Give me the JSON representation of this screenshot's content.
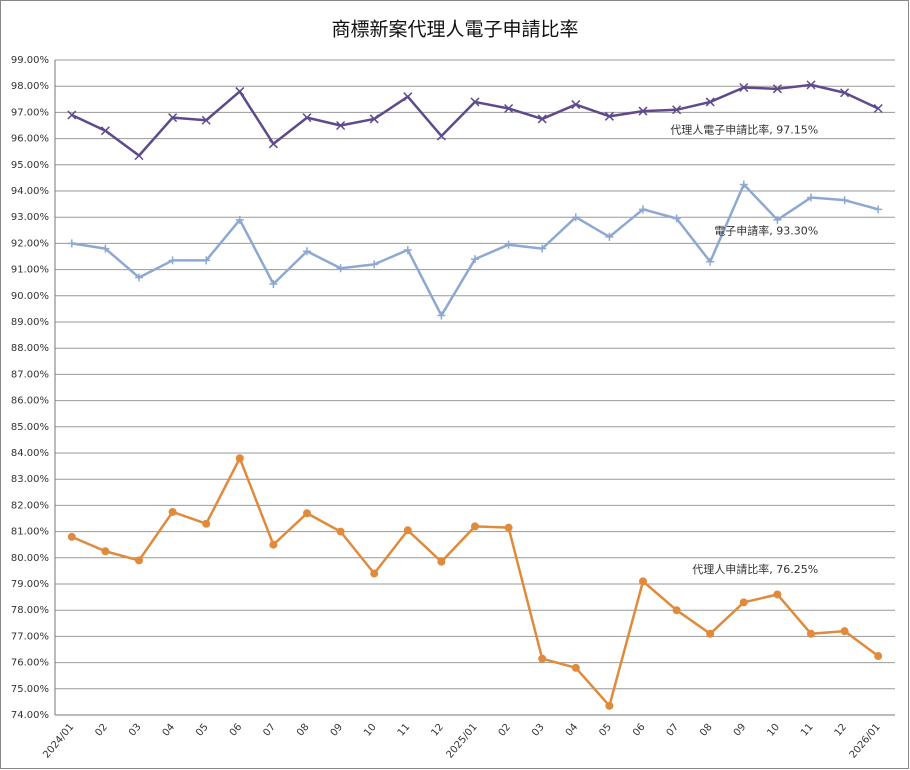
{
  "chart_data": {
    "type": "line",
    "title": "商標新案代理人電子申請比率",
    "categories": [
      "2024/01",
      "02",
      "03",
      "04",
      "05",
      "06",
      "07",
      "08",
      "09",
      "10",
      "11",
      "12",
      "2025/01",
      "02",
      "03",
      "04",
      "05",
      "06",
      "07",
      "08",
      "09",
      "10",
      "11",
      "12",
      "2026/01"
    ],
    "series": [
      {
        "name": "代理人電子申請比率",
        "color": "#5e4a8c",
        "marker": "x",
        "values": [
          96.9,
          96.3,
          95.35,
          96.8,
          96.7,
          97.8,
          95.8,
          96.8,
          96.5,
          96.75,
          97.6,
          96.1,
          97.4,
          97.15,
          96.75,
          97.3,
          96.85,
          97.05,
          97.1,
          97.4,
          97.95,
          97.9,
          98.05,
          97.75,
          97.15
        ]
      },
      {
        "name": "電子申請率",
        "color": "#8ea9d1",
        "marker": "plus",
        "values": [
          92.0,
          91.8,
          90.7,
          91.35,
          91.35,
          92.9,
          90.45,
          91.7,
          91.05,
          91.2,
          91.75,
          89.25,
          91.4,
          91.95,
          91.8,
          93.0,
          92.25,
          93.3,
          92.95,
          91.3,
          94.25,
          92.9,
          93.75,
          93.65,
          93.3
        ]
      },
      {
        "name": "代理人申請比率",
        "color": "#e08a3c",
        "marker": "circle",
        "values": [
          80.8,
          80.25,
          79.9,
          81.75,
          81.3,
          83.8,
          80.5,
          81.7,
          81.0,
          79.4,
          81.05,
          79.85,
          81.2,
          81.15,
          76.15,
          75.8,
          74.35,
          79.1,
          78.0,
          77.1,
          78.3,
          78.6,
          77.1,
          77.2,
          76.25
        ]
      }
    ],
    "annotations": [
      "代理人電子申請比率, 97.15%",
      "電子申請率, 93.30%",
      "代理人申請比率, 76.25%"
    ],
    "annotation_colors": [
      "#5e4a8c",
      "#2f5597",
      "#e08a3c"
    ],
    "ylim": [
      74,
      99
    ],
    "yticks": [
      {
        "value": 74,
        "label": "74.00%"
      },
      {
        "value": 75,
        "label": "75.00%"
      },
      {
        "value": 76,
        "label": "76.00%"
      },
      {
        "value": 77,
        "label": "77.00%"
      },
      {
        "value": 78,
        "label": "78.00%"
      },
      {
        "value": 79,
        "label": "79.00%"
      },
      {
        "value": 80,
        "label": "80.00%"
      },
      {
        "value": 81,
        "label": "81.00%"
      },
      {
        "value": 82,
        "label": "82.00%"
      },
      {
        "value": 83,
        "label": "83.00%"
      },
      {
        "value": 84,
        "label": "84.00%"
      },
      {
        "value": 85,
        "label": "85.00%"
      },
      {
        "value": 86,
        "label": "86.00%"
      },
      {
        "value": 87,
        "label": "87.00%"
      },
      {
        "value": 88,
        "label": "88.00%"
      },
      {
        "value": 89,
        "label": "89.00%"
      },
      {
        "value": 90,
        "label": "90.00%"
      },
      {
        "value": 91,
        "label": "91.00%"
      },
      {
        "value": 92,
        "label": "92.00%"
      },
      {
        "value": 93,
        "label": "93.00%"
      },
      {
        "value": 94,
        "label": "94.00%"
      },
      {
        "value": 95,
        "label": "95.00%"
      },
      {
        "value": 96,
        "label": "96.00%"
      },
      {
        "value": 97,
        "label": "97.00%"
      },
      {
        "value": 98,
        "label": "98.00%"
      },
      {
        "value": 99,
        "label": "99.00%"
      }
    ],
    "grid": true
  }
}
